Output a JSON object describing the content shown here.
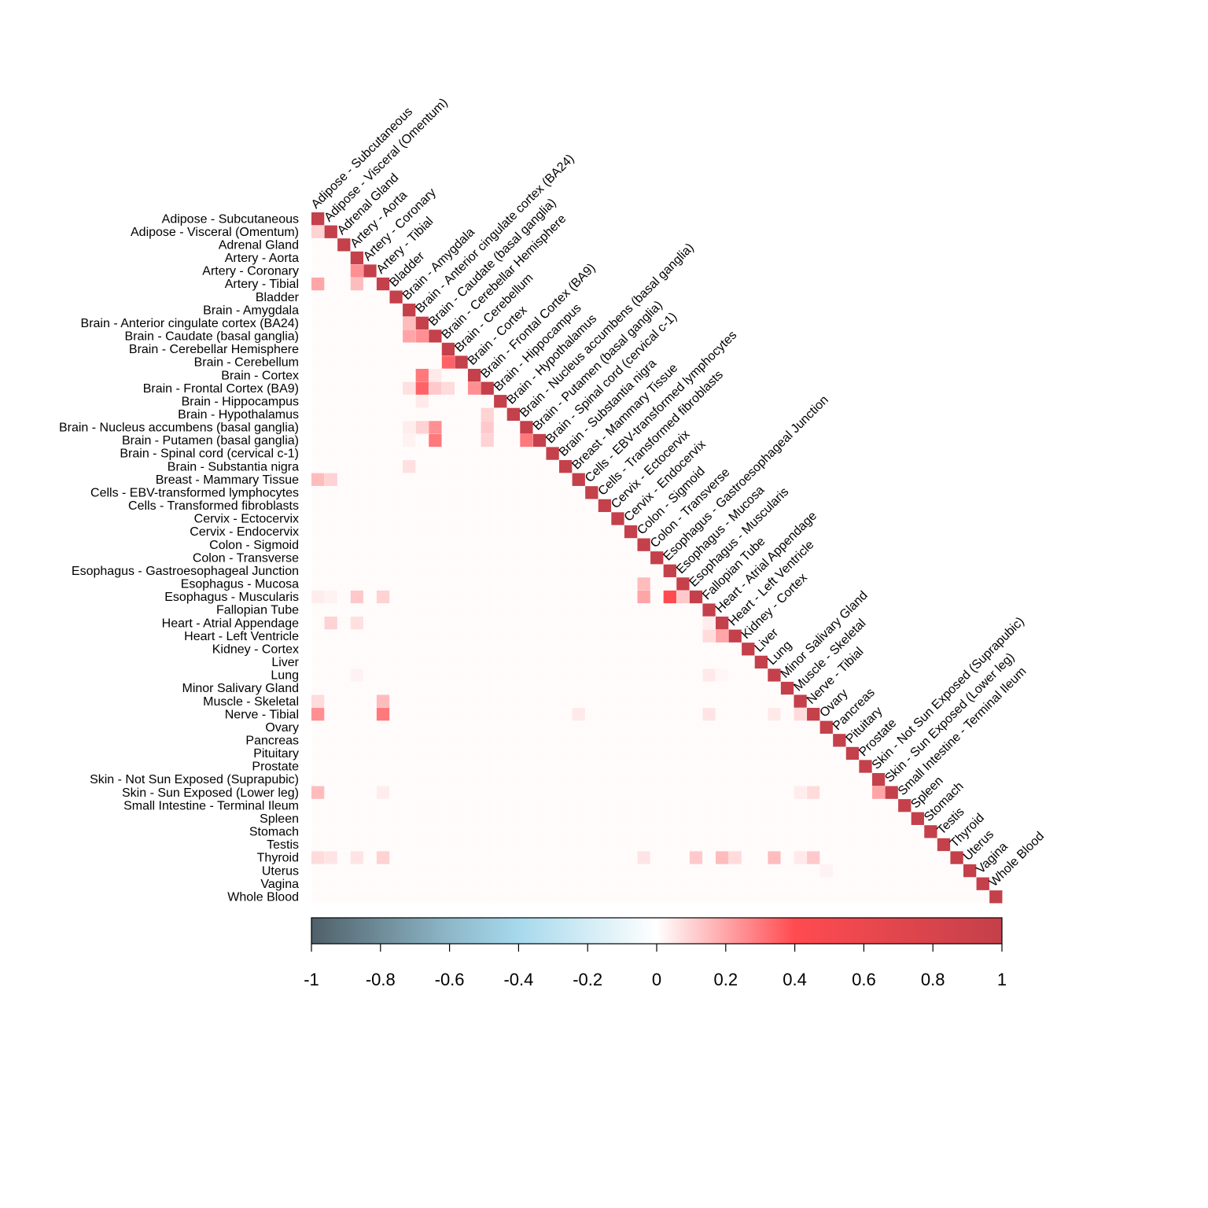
{
  "chart_data": {
    "type": "heatmap",
    "shape": "lower-triangle",
    "labels": [
      "Adipose - Subcutaneous",
      "Adipose - Visceral (Omentum)",
      "Adrenal Gland",
      "Artery - Aorta",
      "Artery - Coronary",
      "Artery - Tibial",
      "Bladder",
      "Brain - Amygdala",
      "Brain - Anterior cingulate cortex (BA24)",
      "Brain - Caudate (basal ganglia)",
      "Brain - Cerebellar Hemisphere",
      "Brain - Cerebellum",
      "Brain - Cortex",
      "Brain - Frontal Cortex (BA9)",
      "Brain - Hippocampus",
      "Brain - Hypothalamus",
      "Brain - Nucleus accumbens (basal ganglia)",
      "Brain - Putamen (basal ganglia)",
      "Brain - Spinal cord (cervical c-1)",
      "Brain - Substantia nigra",
      "Breast - Mammary Tissue",
      "Cells - EBV-transformed lymphocytes",
      "Cells - Transformed fibroblasts",
      "Cervix - Ectocervix",
      "Cervix - Endocervix",
      "Colon - Sigmoid",
      "Colon - Transverse",
      "Esophagus - Gastroesophageal Junction",
      "Esophagus - Mucosa",
      "Esophagus - Muscularis",
      "Fallopian Tube",
      "Heart - Atrial Appendage",
      "Heart - Left Ventricle",
      "Kidney - Cortex",
      "Liver",
      "Lung",
      "Minor Salivary Gland",
      "Muscle - Skeletal",
      "Nerve - Tibial",
      "Ovary",
      "Pancreas",
      "Pituitary",
      "Prostate",
      "Skin - Not Sun Exposed (Suprapubic)",
      "Skin - Sun Exposed (Lower leg)",
      "Small Intestine - Terminal Ileum",
      "Spleen",
      "Stomach",
      "Testis",
      "Thyroid",
      "Uterus",
      "Vagina",
      "Whole Blood"
    ],
    "diagonal_value": 1,
    "default_offdiagonal_value": 0.01,
    "cells": [
      {
        "row": 1,
        "col": 0,
        "value": 0.1
      },
      {
        "row": 4,
        "col": 3,
        "value": 0.25
      },
      {
        "row": 5,
        "col": 0,
        "value": 0.2
      },
      {
        "row": 5,
        "col": 3,
        "value": 0.15
      },
      {
        "row": 8,
        "col": 7,
        "value": 0.15
      },
      {
        "row": 9,
        "col": 7,
        "value": 0.2
      },
      {
        "row": 9,
        "col": 8,
        "value": 0.25
      },
      {
        "row": 11,
        "col": 10,
        "value": 0.35
      },
      {
        "row": 12,
        "col": 8,
        "value": 0.3
      },
      {
        "row": 12,
        "col": 9,
        "value": 0.05
      },
      {
        "row": 13,
        "col": 7,
        "value": 0.07
      },
      {
        "row": 13,
        "col": 8,
        "value": 0.35
      },
      {
        "row": 13,
        "col": 9,
        "value": 0.12
      },
      {
        "row": 13,
        "col": 10,
        "value": 0.08
      },
      {
        "row": 13,
        "col": 12,
        "value": 0.25
      },
      {
        "row": 14,
        "col": 8,
        "value": 0.05
      },
      {
        "row": 15,
        "col": 13,
        "value": 0.1
      },
      {
        "row": 16,
        "col": 7,
        "value": 0.04
      },
      {
        "row": 16,
        "col": 8,
        "value": 0.1
      },
      {
        "row": 16,
        "col": 9,
        "value": 0.25
      },
      {
        "row": 16,
        "col": 13,
        "value": 0.12
      },
      {
        "row": 16,
        "col": 16,
        "value": 1
      },
      {
        "row": 17,
        "col": 7,
        "value": 0.03
      },
      {
        "row": 17,
        "col": 9,
        "value": 0.3
      },
      {
        "row": 17,
        "col": 13,
        "value": 0.1
      },
      {
        "row": 17,
        "col": 16,
        "value": 0.3
      },
      {
        "row": 19,
        "col": 7,
        "value": 0.07
      },
      {
        "row": 20,
        "col": 0,
        "value": 0.15
      },
      {
        "row": 20,
        "col": 1,
        "value": 0.1
      },
      {
        "row": 28,
        "col": 25,
        "value": 0.15
      },
      {
        "row": 29,
        "col": 0,
        "value": 0.04
      },
      {
        "row": 29,
        "col": 1,
        "value": 0.03
      },
      {
        "row": 29,
        "col": 3,
        "value": 0.12
      },
      {
        "row": 29,
        "col": 5,
        "value": 0.1
      },
      {
        "row": 29,
        "col": 25,
        "value": 0.2
      },
      {
        "row": 29,
        "col": 27,
        "value": 0.4
      },
      {
        "row": 29,
        "col": 28,
        "value": 0.12
      },
      {
        "row": 31,
        "col": 1,
        "value": 0.1
      },
      {
        "row": 31,
        "col": 3,
        "value": 0.07
      },
      {
        "row": 31,
        "col": 30,
        "value": 0.04
      },
      {
        "row": 32,
        "col": 30,
        "value": 0.08
      },
      {
        "row": 32,
        "col": 31,
        "value": 0.2
      },
      {
        "row": 35,
        "col": 3,
        "value": 0.03
      },
      {
        "row": 35,
        "col": 30,
        "value": 0.05
      },
      {
        "row": 35,
        "col": 31,
        "value": 0.02
      },
      {
        "row": 37,
        "col": 0,
        "value": 0.08
      },
      {
        "row": 37,
        "col": 5,
        "value": 0.15
      },
      {
        "row": 38,
        "col": 0,
        "value": 0.25
      },
      {
        "row": 38,
        "col": 5,
        "value": 0.3
      },
      {
        "row": 38,
        "col": 20,
        "value": 0.05
      },
      {
        "row": 38,
        "col": 30,
        "value": 0.06
      },
      {
        "row": 38,
        "col": 35,
        "value": 0.05
      },
      {
        "row": 38,
        "col": 37,
        "value": 0.08
      },
      {
        "row": 44,
        "col": 0,
        "value": 0.15
      },
      {
        "row": 44,
        "col": 5,
        "value": 0.04
      },
      {
        "row": 44,
        "col": 37,
        "value": 0.04
      },
      {
        "row": 44,
        "col": 38,
        "value": 0.08
      },
      {
        "row": 44,
        "col": 43,
        "value": 0.2
      },
      {
        "row": 49,
        "col": 0,
        "value": 0.08
      },
      {
        "row": 49,
        "col": 1,
        "value": 0.06
      },
      {
        "row": 49,
        "col": 3,
        "value": 0.06
      },
      {
        "row": 49,
        "col": 5,
        "value": 0.1
      },
      {
        "row": 49,
        "col": 25,
        "value": 0.06
      },
      {
        "row": 49,
        "col": 29,
        "value": 0.12
      },
      {
        "row": 49,
        "col": 31,
        "value": 0.15
      },
      {
        "row": 49,
        "col": 32,
        "value": 0.08
      },
      {
        "row": 49,
        "col": 35,
        "value": 0.15
      },
      {
        "row": 49,
        "col": 37,
        "value": 0.05
      },
      {
        "row": 49,
        "col": 38,
        "value": 0.12
      },
      {
        "row": 50,
        "col": 39,
        "value": 0.03
      }
    ],
    "colorbar": {
      "range": [
        -1,
        1
      ],
      "ticks": [
        "-1",
        "-0.8",
        "-0.6",
        "-0.4",
        "-0.2",
        "0",
        "0.2",
        "0.4",
        "0.6",
        "0.8",
        "1"
      ],
      "colors": {
        "neg1": "#4f6069",
        "neg06": "#8eb8c9",
        "neg04": "#a6d9ec",
        "zero": "#ffffff",
        "pos04": "#ff4b50",
        "pos1": "#c4404a"
      }
    }
  }
}
